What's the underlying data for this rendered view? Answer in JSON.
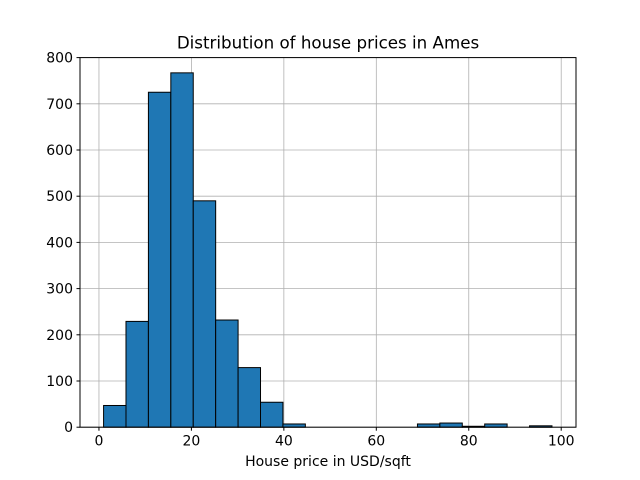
{
  "chart_data": {
    "type": "bar",
    "subtype": "histogram",
    "title": "Distribution of house prices in Ames",
    "xlabel": "House price in USD/sqft",
    "ylabel": "",
    "bin_edges": [
      1.0,
      5.85,
      10.7,
      15.55,
      20.4,
      25.25,
      30.1,
      34.95,
      39.8,
      44.65,
      49.5,
      54.35,
      59.2,
      64.05,
      68.9,
      73.75,
      78.6,
      83.45,
      88.3,
      93.15,
      98.0
    ],
    "counts": [
      47,
      229,
      725,
      767,
      490,
      232,
      129,
      54,
      7,
      0,
      0,
      0,
      0,
      0,
      7,
      9,
      2,
      7,
      0,
      3
    ],
    "xticks": [
      0,
      20,
      40,
      60,
      80,
      100
    ],
    "yticks": [
      0,
      100,
      200,
      300,
      400,
      500,
      600,
      700,
      800
    ],
    "xlim": [
      -4.1,
      103.2
    ],
    "ylim": [
      0,
      800
    ],
    "grid": true,
    "legend": false,
    "bar_color": "#1f77b4",
    "bar_edge_color": "#000000",
    "grid_color": "#b0b0b0",
    "spine_color": "#000000",
    "background": "#ffffff"
  }
}
